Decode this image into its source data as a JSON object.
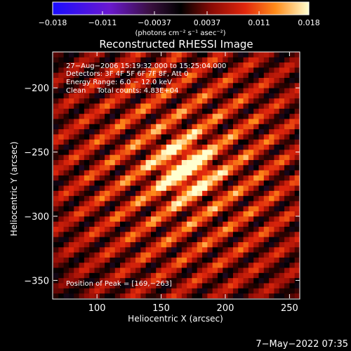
{
  "chart_data": {
    "type": "heatmap",
    "title": "Reconstructed RHESSI Image",
    "xlabel": "Heliocentric X (arcsec)",
    "ylabel": "Heliocentric Y (arcsec)",
    "xlim": [
      66,
      258
    ],
    "ylim": [
      -364,
      -172
    ],
    "x_ticks": [
      100,
      150,
      200,
      250
    ],
    "y_ticks": [
      -200,
      -250,
      -300,
      -350
    ],
    "x_tick_labels": [
      "100",
      "150",
      "200",
      "250"
    ],
    "y_tick_labels": [
      "−200",
      "−250",
      "−300",
      "−350"
    ],
    "colorbar": {
      "range": [
        -0.018,
        0.018
      ],
      "ticks": [
        -0.018,
        -0.011,
        -0.0037,
        0.0037,
        0.011,
        0.018
      ],
      "tick_labels": [
        "−0.018",
        "−0.011",
        "−0.0037",
        "0.0037",
        "0.011",
        "0.018"
      ],
      "units_label": "(photons cm⁻² s⁻¹ asec⁻²)"
    },
    "annotations": [
      "27−Aug−2006 15:19:32.000 to 15:25:04.000",
      "Detectors: 3F 4F 5F 6F 7F 8F, Att 0",
      "Energy Range: 6.0 − 12.0 keV",
      "Clean     Total counts: 4.83E+04"
    ],
    "peak_label": "Position of Peak = [169,−263]",
    "peak": [
      169,
      -263
    ],
    "peak_value": 0.018,
    "stripe_angle_deg": 35,
    "pixel_size_arcsec": 4
  },
  "footer": {
    "timestamp": "7−May−2022 07:35"
  },
  "colors": {
    "background": "#000000",
    "text": "#ffffff",
    "axes": "#ffffff"
  }
}
